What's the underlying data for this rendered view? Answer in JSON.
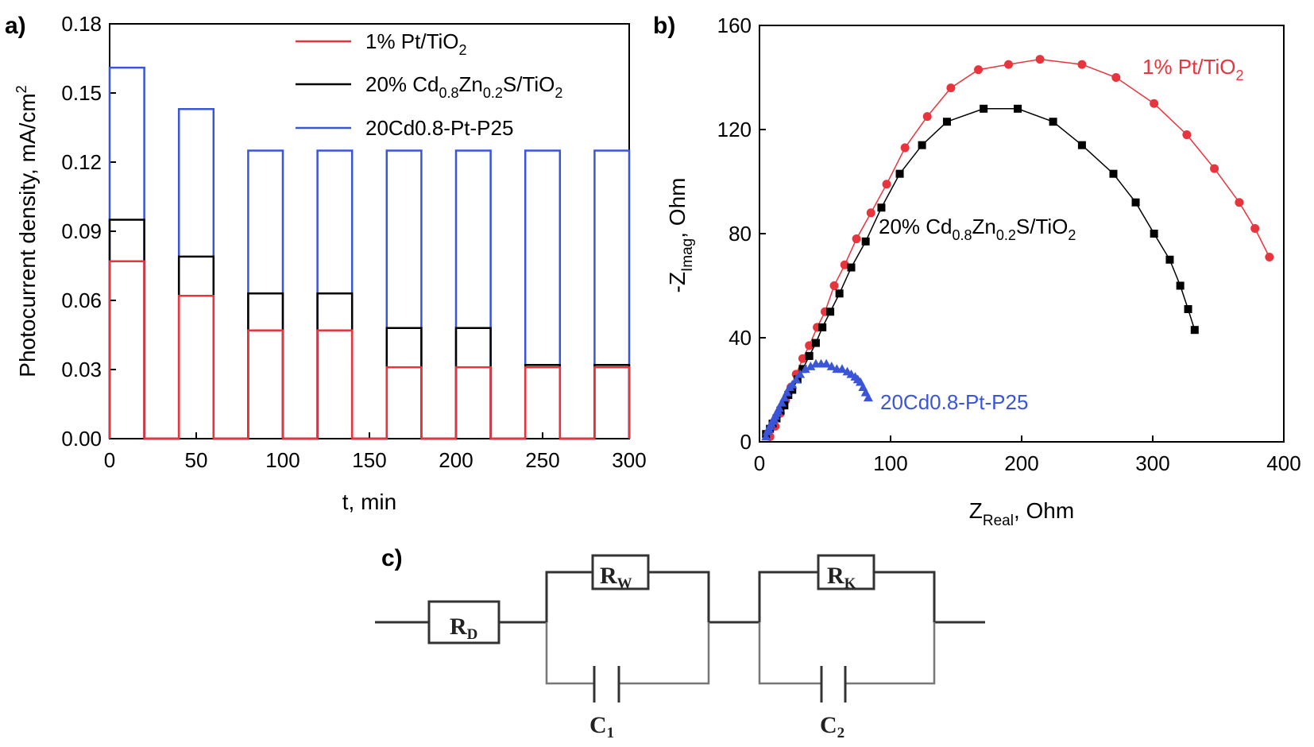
{
  "chart_data": [
    {
      "panel": "a)",
      "type": "line",
      "xlabel": "t, min",
      "ylabel": "Photocurrent density, mA/cm",
      "ylabel_sup": "2",
      "xlim": [
        0,
        300
      ],
      "ylim": [
        0,
        0.18
      ],
      "xticks": [
        "0",
        "50",
        "100",
        "150",
        "200",
        "250",
        "300"
      ],
      "yticks": [
        "0.00",
        "0.03",
        "0.06",
        "0.09",
        "0.12",
        "0.15",
        "0.18"
      ],
      "legend_position": "top-right",
      "on_intervals": [
        [
          0,
          20
        ],
        [
          40,
          60
        ],
        [
          80,
          100
        ],
        [
          120,
          140
        ],
        [
          160,
          180
        ],
        [
          200,
          220
        ],
        [
          240,
          260
        ],
        [
          280,
          300
        ]
      ],
      "series": [
        {
          "name": "1% Pt/TiO",
          "name_sub": "2",
          "color": "#e8343c",
          "values": [
            0.077,
            0.062,
            0.047,
            0.047,
            0.031,
            0.031,
            0.031,
            0.031
          ]
        },
        {
          "name": "20% Cd",
          "name_parts": [
            {
              "t": "20% Cd",
              "s": false
            },
            {
              "t": "0.8",
              "s": true
            },
            {
              "t": "Zn",
              "s": false
            },
            {
              "t": "0.2",
              "s": true
            },
            {
              "t": "S/TiO",
              "s": false
            },
            {
              "t": "2",
              "s": true
            }
          ],
          "color": "#000000",
          "values": [
            0.095,
            0.079,
            0.063,
            0.063,
            0.048,
            0.048,
            0.032,
            0.032
          ]
        },
        {
          "name": "20Cd0.8-Pt-P25",
          "color": "#3b55d9",
          "values": [
            0.161,
            0.143,
            0.125,
            0.125,
            0.125,
            0.125,
            0.125,
            0.125
          ]
        }
      ]
    },
    {
      "panel": "b)",
      "type": "scatter",
      "xlabel": "Z",
      "xlabel_sub": "Real",
      "xlabel_tail": ", Ohm",
      "ylabel": "-Z",
      "ylabel_sub": "Imag",
      "ylabel_tail": ", Ohm",
      "xlim": [
        0,
        400
      ],
      "ylim": [
        0,
        160
      ],
      "xticks": [
        "0",
        "100",
        "200",
        "300",
        "400"
      ],
      "yticks": [
        "0",
        "40",
        "80",
        "120",
        "160"
      ],
      "series": [
        {
          "name": "1% Pt/TiO",
          "name_sub": "2",
          "color": "#e8343c",
          "marker": "circle",
          "x": [
            8,
            12,
            16,
            20,
            24,
            28,
            33,
            38,
            44,
            50,
            57,
            65,
            74,
            85,
            97,
            111,
            128,
            146,
            167,
            190,
            214,
            246,
            272,
            301,
            326,
            347,
            366,
            378,
            389
          ],
          "y": [
            2,
            6,
            11,
            16,
            21,
            26,
            32,
            37,
            44,
            50,
            60,
            68,
            78,
            88,
            99,
            113,
            125,
            136,
            143,
            145,
            147,
            145,
            140,
            130,
            118,
            105,
            92,
            82,
            71
          ]
        },
        {
          "name": "20% Cd",
          "name_parts": [
            {
              "t": "20% Cd",
              "s": false
            },
            {
              "t": "0.8",
              "s": true
            },
            {
              "t": "Zn",
              "s": false
            },
            {
              "t": "0.2",
              "s": true
            },
            {
              "t": "S/TiO",
              "s": false
            },
            {
              "t": "2",
              "s": true
            }
          ],
          "color": "#000000",
          "marker": "square",
          "x": [
            5,
            8,
            10,
            13,
            16,
            19,
            22,
            25,
            29,
            33,
            38,
            43,
            48,
            54,
            61,
            70,
            81,
            93,
            107,
            124,
            143,
            171,
            197,
            224,
            246,
            270,
            287,
            301,
            313,
            321,
            327,
            332
          ],
          "y": [
            3,
            5,
            7,
            9,
            12,
            14,
            18,
            20,
            24,
            28,
            33,
            38,
            44,
            50,
            57,
            67,
            77,
            90,
            103,
            114,
            123,
            128,
            128,
            123,
            114,
            103,
            92,
            80,
            70,
            60,
            51,
            43
          ]
        },
        {
          "name": "20Cd0.8-Pt-P25",
          "color": "#3b55d9",
          "marker": "triangle",
          "x": [
            5,
            6,
            7,
            8,
            9,
            10,
            11,
            12,
            13,
            14,
            15,
            17,
            19,
            21,
            23,
            25,
            28,
            31,
            35,
            39,
            43,
            47,
            51,
            55,
            59,
            63,
            67,
            70,
            73,
            75,
            77,
            79,
            81,
            83
          ],
          "y": [
            2,
            4,
            5,
            6,
            7,
            8,
            9,
            10,
            11,
            12,
            13,
            15,
            17,
            19,
            21,
            22,
            24,
            26,
            28,
            29,
            30,
            30,
            30,
            29,
            28,
            28,
            27,
            26,
            25,
            24,
            23,
            21,
            19,
            17
          ]
        }
      ],
      "annotations": [
        {
          "text": "1% Pt/TiO",
          "sub": "2",
          "color": "#e8343c"
        },
        {
          "text_parts": [
            {
              "t": "20% Cd",
              "s": false
            },
            {
              "t": "0.8",
              "s": true
            },
            {
              "t": "Zn",
              "s": false
            },
            {
              "t": "0.2",
              "s": true
            },
            {
              "t": "S/TiO",
              "s": false
            },
            {
              "t": "2",
              "s": true
            }
          ],
          "color": "#000000"
        },
        {
          "text": "20Cd0.8-Pt-P25",
          "color": "#3b55d9"
        }
      ]
    }
  ],
  "circuit": {
    "panel": "c)",
    "r_d": {
      "main": "R",
      "sub": "D"
    },
    "r_w": {
      "main": "R",
      "sub": "W"
    },
    "r_k": {
      "main": "R",
      "sub": "K"
    },
    "c1": {
      "main": "C",
      "sub": "1"
    },
    "c2": {
      "main": "C",
      "sub": "2"
    }
  }
}
